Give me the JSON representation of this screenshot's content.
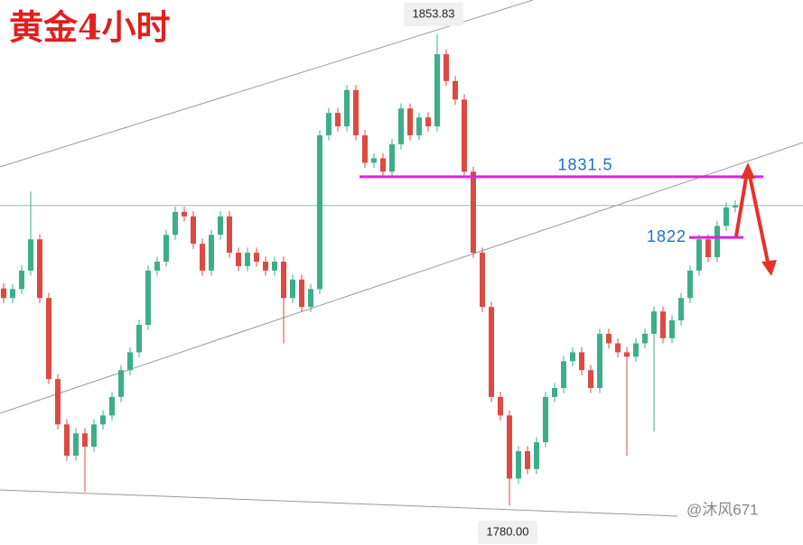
{
  "chart_data": {
    "type": "candlestick",
    "title": "黄金4小时",
    "watermark": "@沐风671",
    "up_color": "#3dae8a",
    "down_color": "#dc4a42",
    "ylim": [
      1773.8,
      1859.2
    ],
    "open": [
      1814.0,
      1812.5,
      1813.9,
      1816.8,
      1821.7,
      1812.5,
      1799.8,
      1792.7,
      1787.8,
      1791.3,
      1789.2,
      1792.7,
      1794.1,
      1797.0,
      1801.2,
      1804.0,
      1808.3,
      1816.8,
      1818.2,
      1822.4,
      1826.0,
      1825.3,
      1821.0,
      1816.8,
      1822.4,
      1825.3,
      1819.6,
      1817.5,
      1819.6,
      1818.2,
      1816.8,
      1818.2,
      1812.5,
      1815.4,
      1811.1,
      1813.9,
      1838.0,
      1841.5,
      1839.4,
      1845.1,
      1838.0,
      1833.7,
      1834.4,
      1832.3,
      1836.6,
      1842.2,
      1838.0,
      1840.8,
      1839.4,
      1850.7,
      1846.5,
      1843.6,
      1832.3,
      1819.6,
      1811.1,
      1797.0,
      1794.1,
      1784.2,
      1788.5,
      1785.7,
      1789.9,
      1797.0,
      1798.4,
      1802.6,
      1804.0,
      1801.2,
      1798.4,
      1806.9,
      1805.4,
      1804.0,
      1803.3,
      1805.4,
      1806.9,
      1810.4,
      1806.2,
      1809.0,
      1812.5,
      1816.8,
      1821.7,
      1818.9,
      1823.8,
      1826.7
    ],
    "high": [
      1814.8,
      1814.7,
      1817.6,
      1829.2,
      1822.5,
      1813.3,
      1800.6,
      1793.5,
      1792.1,
      1792.1,
      1793.5,
      1794.9,
      1797.8,
      1802.0,
      1804.8,
      1809.1,
      1817.6,
      1819.0,
      1823.2,
      1826.8,
      1826.8,
      1826.1,
      1821.8,
      1823.2,
      1826.1,
      1826.1,
      1820.4,
      1820.4,
      1820.4,
      1819.0,
      1819.0,
      1819.0,
      1816.2,
      1816.2,
      1814.7,
      1838.8,
      1842.3,
      1842.3,
      1845.9,
      1845.9,
      1838.8,
      1835.2,
      1835.2,
      1837.4,
      1843.0,
      1843.0,
      1841.6,
      1841.6,
      1853.83,
      1851.5,
      1847.3,
      1844.4,
      1833.1,
      1820.4,
      1811.9,
      1797.8,
      1794.9,
      1789.3,
      1789.3,
      1790.7,
      1797.8,
      1799.2,
      1803.4,
      1804.8,
      1804.8,
      1802.0,
      1807.7,
      1807.7,
      1806.2,
      1804.8,
      1806.2,
      1807.7,
      1811.2,
      1811.2,
      1809.8,
      1813.3,
      1817.6,
      1822.5,
      1822.5,
      1824.6,
      1827.5,
      1827.8
    ],
    "low": [
      1811.7,
      1811.7,
      1813.1,
      1816.0,
      1811.7,
      1799.0,
      1791.9,
      1787.0,
      1787.0,
      1782.1,
      1788.4,
      1791.9,
      1793.3,
      1796.2,
      1800.4,
      1803.2,
      1807.5,
      1816.0,
      1817.4,
      1821.6,
      1824.5,
      1820.2,
      1816.0,
      1816.0,
      1821.6,
      1818.8,
      1816.7,
      1816.7,
      1817.4,
      1816.0,
      1816.0,
      1805.4,
      1811.7,
      1810.3,
      1810.3,
      1813.1,
      1837.2,
      1838.6,
      1838.6,
      1837.2,
      1832.9,
      1832.9,
      1831.5,
      1831.5,
      1835.8,
      1837.2,
      1837.2,
      1838.6,
      1838.6,
      1845.7,
      1842.8,
      1831.5,
      1818.8,
      1810.3,
      1796.2,
      1793.3,
      1780.0,
      1783.4,
      1784.9,
      1784.9,
      1789.1,
      1796.2,
      1797.6,
      1801.8,
      1800.4,
      1797.6,
      1797.6,
      1804.6,
      1803.2,
      1787.8,
      1802.5,
      1804.6,
      1791.6,
      1805.4,
      1805.4,
      1808.2,
      1811.7,
      1816.0,
      1818.1,
      1818.1,
      1823.0,
      1825.9
    ],
    "close": [
      1812.5,
      1813.9,
      1816.8,
      1821.7,
      1812.5,
      1799.8,
      1792.7,
      1787.8,
      1791.3,
      1789.2,
      1792.7,
      1794.1,
      1797.0,
      1801.2,
      1804.0,
      1808.3,
      1816.8,
      1818.2,
      1822.4,
      1826.0,
      1825.3,
      1821.0,
      1816.8,
      1822.4,
      1825.3,
      1819.6,
      1817.5,
      1819.6,
      1818.2,
      1816.8,
      1818.2,
      1812.5,
      1815.4,
      1811.1,
      1813.9,
      1838.0,
      1841.5,
      1839.4,
      1845.1,
      1838.0,
      1833.7,
      1834.4,
      1832.3,
      1836.6,
      1842.2,
      1838.0,
      1840.8,
      1839.4,
      1850.7,
      1846.5,
      1843.6,
      1832.3,
      1819.6,
      1811.1,
      1797.0,
      1794.1,
      1784.2,
      1788.5,
      1785.7,
      1789.9,
      1797.0,
      1798.4,
      1802.6,
      1804.0,
      1801.2,
      1798.4,
      1806.9,
      1805.4,
      1804.0,
      1803.3,
      1805.4,
      1806.9,
      1810.4,
      1806.2,
      1809.0,
      1812.5,
      1816.8,
      1821.7,
      1818.9,
      1823.8,
      1826.7,
      1827.0
    ],
    "high_label": 1853.83,
    "low_label": {
      "value": 1780,
      "label": "1780.00"
    },
    "levels": [
      {
        "value": 1831.5,
        "color": "#e020e0",
        "label_color": "#1a6fd0"
      },
      {
        "value": 1822,
        "color": "#e020e0",
        "label_color": "#1a6fd0"
      }
    ],
    "last_price": 1827.0,
    "last_price_color": "#7ac9a8"
  }
}
